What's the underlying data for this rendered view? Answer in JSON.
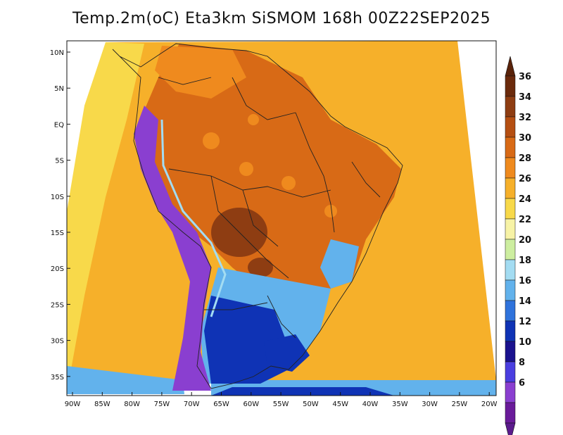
{
  "title": "Temp.2m(oC) Eta3km SiSMOM 168h 00Z22SEP2025",
  "map": {
    "variable": "2 m temperature",
    "unit": "oC",
    "lat_ticks": [
      "10N",
      "5N",
      "EQ",
      "5S",
      "10S",
      "15S",
      "20S",
      "25S",
      "30S",
      "35S"
    ],
    "lon_ticks": [
      "90W",
      "85W",
      "80W",
      "75W",
      "70W",
      "65W",
      "60W",
      "55W",
      "50W",
      "45W",
      "40W",
      "35W",
      "30W",
      "25W",
      "20W"
    ]
  },
  "colorbar": {
    "levels": [
      "36",
      "34",
      "32",
      "30",
      "28",
      "26",
      "24",
      "22",
      "20",
      "18",
      "16",
      "14",
      "12",
      "10",
      "8",
      "6"
    ],
    "colors": [
      "#6b2a0c",
      "#8e3d12",
      "#b54f12",
      "#d86a16",
      "#ef8a1e",
      "#f6b02a",
      "#f8d94a",
      "#f7f3a6",
      "#cdeea0",
      "#a3dcf2",
      "#62b2ec",
      "#2f73dc",
      "#0f33b5",
      "#1a128e",
      "#4a3ee0",
      "#8a3fd0",
      "#6a1b9a"
    ],
    "top_arrow_color": "#5a230a",
    "bottom_arrow_color": "#5b1b8c"
  },
  "colors": {
    "ocean_warm": "#f6b02a",
    "ocean_hot": "#ef8a1e",
    "interior": "#d86a16",
    "pantanal": "#8e3d12",
    "andes": "#8a3fd0",
    "cold_south": "#0f33b5",
    "mild_south": "#62b2ec",
    "pacific_cool": "#f8d94a",
    "border_line": "#222222"
  }
}
